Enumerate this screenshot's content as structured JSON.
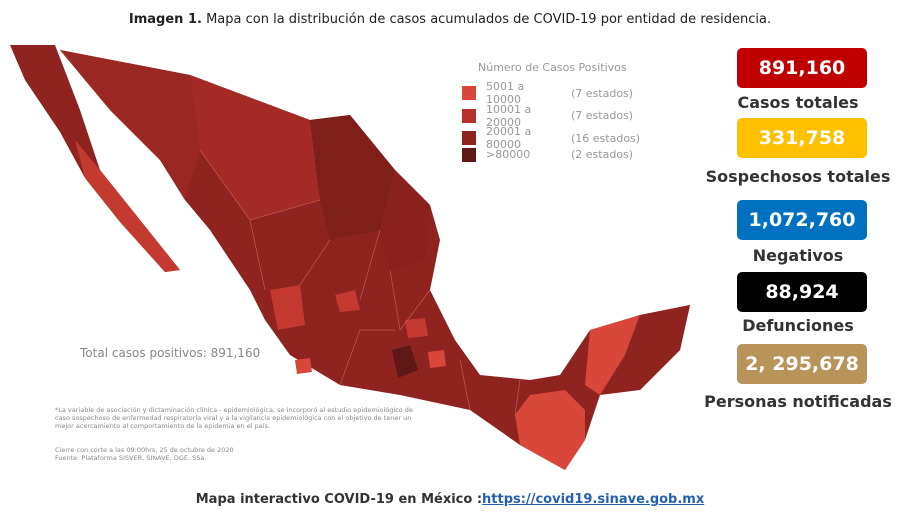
{
  "header": {
    "title_bold": "Imagen 1.",
    "title": "Mapa con la distribución de casos acumulados de COVID-19 por entidad de residencia."
  },
  "legend": {
    "title": "Número de Casos Positivos",
    "items": [
      {
        "range": "5001 a 10000",
        "count": "(7 estados)",
        "color": "#d9473a"
      },
      {
        "range": "10001 a 20000",
        "count": "(7 estados)",
        "color": "#b8302a"
      },
      {
        "range": "20001 a 80000",
        "count": "(16 estados)",
        "color": "#8e2320"
      },
      {
        "range": ">80000",
        "count": "(2 estados)",
        "color": "#5e1815"
      }
    ]
  },
  "map_label": "Total casos positivos: 891,160",
  "notes": [
    "*La variable de asociación y dictaminación clínica - epidemiológica, se incorporó al estudio epidemiológico de caso sospechoso de enfermedad respiratoria viral y a la vigilancia epidemiológica con el objetivo de tener un mejor acercamiento al comportamiento de la epidemia en el país."
  ],
  "source": [
    "Cierre con corte a las 09:00hrs, 25 de octubre de 2020",
    "Fuente: Plataforma SISVER, SINAVE, DGE, SSa."
  ],
  "stats": [
    {
      "value": "891,160",
      "label": "Casos totales",
      "color": "#c00000"
    },
    {
      "value": "331,758",
      "label": "Sospechosos totales",
      "color": "#ffc000"
    },
    {
      "value": "1,072,760",
      "label": "Negativos",
      "color": "#0070c0"
    },
    {
      "value": "88,924",
      "label": "Defunciones",
      "color": "#000000"
    },
    {
      "value": "2, 295,678",
      "label": "Personas notificadas",
      "color": "#b8935a"
    }
  ],
  "footer": {
    "text": "Mapa interactivo COVID-19 en México :",
    "link": "https://covid19.sinave.gob.mx"
  }
}
